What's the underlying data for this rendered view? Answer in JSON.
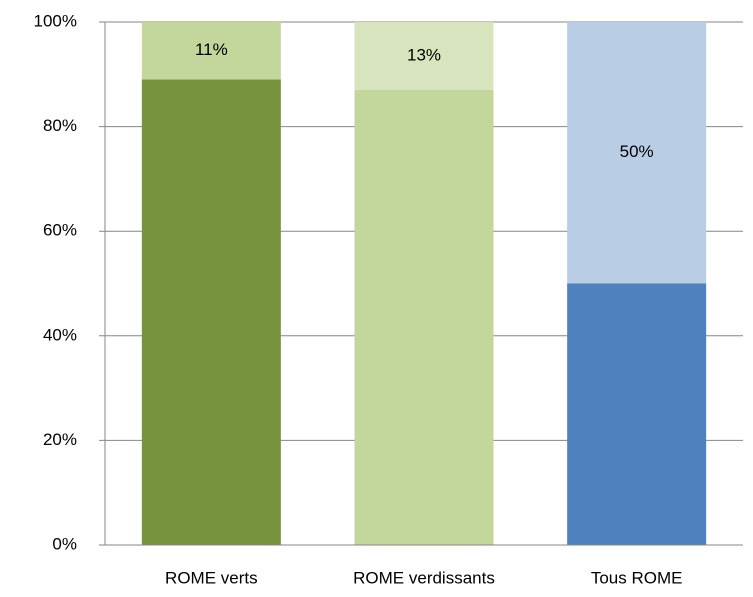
{
  "chart_data": {
    "type": "bar",
    "stacked": true,
    "categories": [
      "ROME verts",
      "ROME verdissants",
      "Tous ROME"
    ],
    "series": [
      {
        "colors": [
          "#77933c",
          "#c3d69b",
          "#4f81bd"
        ],
        "values": [
          89,
          87,
          50
        ]
      },
      {
        "colors": [
          "#c3d69b",
          "#d7e4bd",
          "#b9cde5"
        ],
        "values": [
          11,
          13,
          50
        ],
        "value_labels": [
          "11%",
          "13%",
          "50%"
        ]
      }
    ],
    "ylim": [
      0,
      100
    ],
    "yticks": [
      {
        "value": 0,
        "label": "0%"
      },
      {
        "value": 20,
        "label": "20%"
      },
      {
        "value": 40,
        "label": "40%"
      },
      {
        "value": 60,
        "label": "60%"
      },
      {
        "value": 80,
        "label": "80%"
      },
      {
        "value": 100,
        "label": "100%"
      }
    ],
    "grid": true
  }
}
